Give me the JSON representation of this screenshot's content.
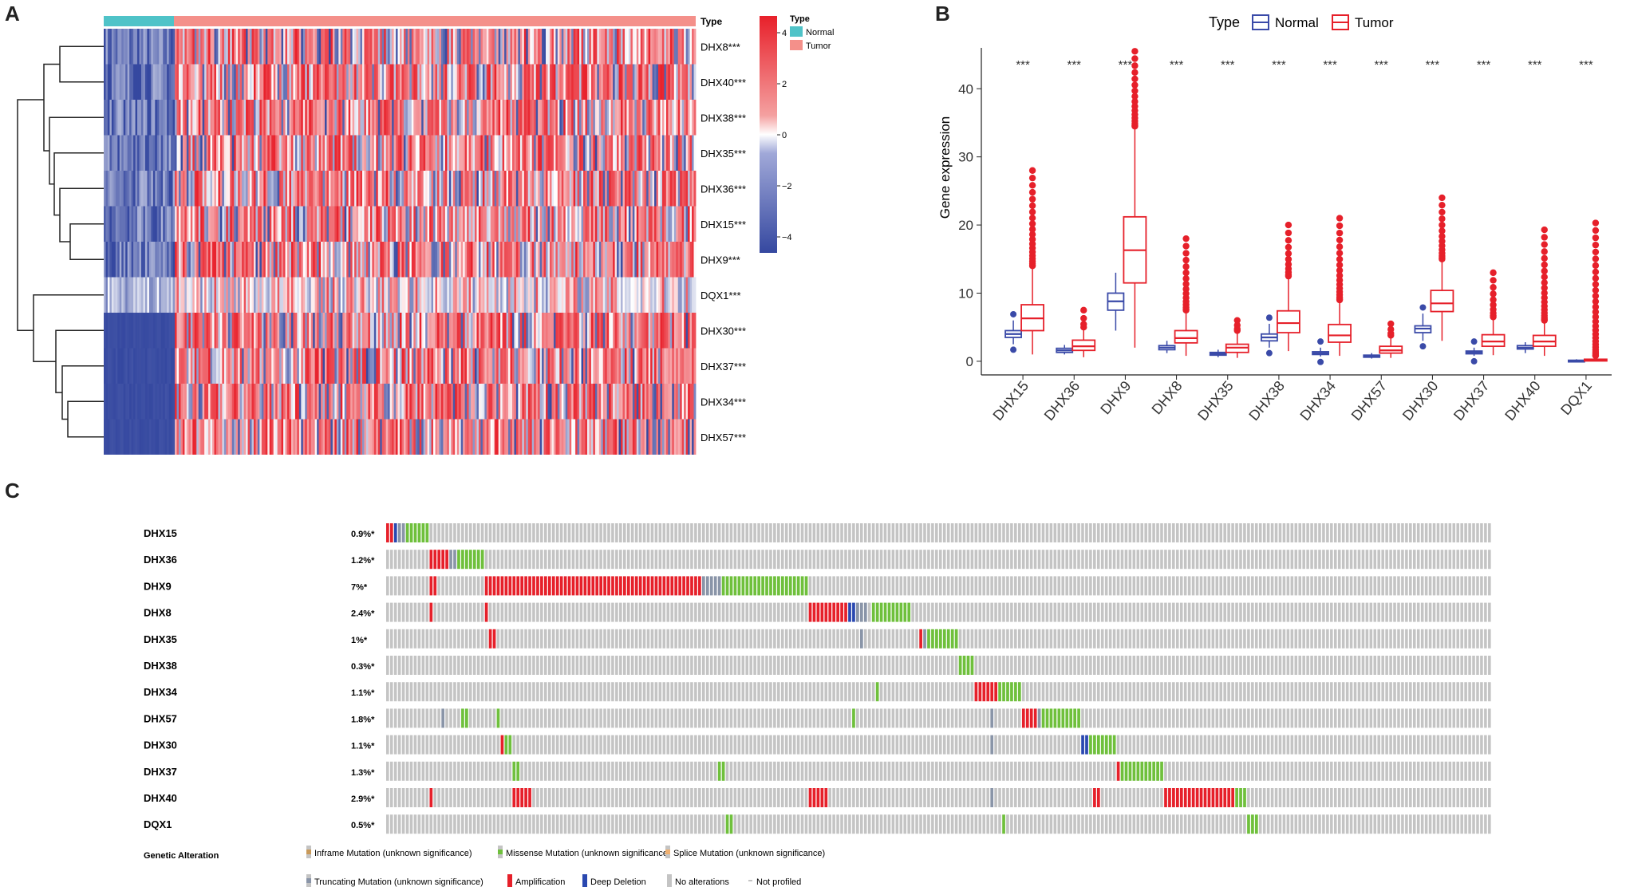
{
  "panel_labels": {
    "a": "A",
    "b": "B",
    "c": "C"
  },
  "heatmap": {
    "type_header": "Type",
    "rows": [
      "DHX8***",
      "DHX40***",
      "DHX38***",
      "DHX35***",
      "DHX36***",
      "DHX15***",
      "DHX9***",
      "DQX1***",
      "DHX30***",
      "DHX37***",
      "DHX34***",
      "DHX57***"
    ],
    "colorbar_ticks": [
      "4",
      "2",
      "0",
      "−2",
      "−4"
    ],
    "legend_title": "Type",
    "legend_items": [
      {
        "label": "Normal",
        "color": "#4fc3c8"
      },
      {
        "label": "Tumor",
        "color": "#f4908a"
      }
    ],
    "colors": {
      "high": "#e8202a",
      "mid": "#ffffff",
      "low": "#3548a0"
    }
  },
  "chart_data": {
    "type": "boxplot",
    "legend_title": "Type",
    "legend": [
      {
        "name": "Normal",
        "color": "#3a4aa8"
      },
      {
        "name": "Tumor",
        "color": "#e6202a"
      }
    ],
    "ylabel": "Gene expression",
    "ylim": [
      -2,
      46
    ],
    "yticks": [
      "0",
      "10",
      "20",
      "30",
      "40"
    ],
    "categories": [
      "DHX15",
      "DHX36",
      "DHX9",
      "DHX8",
      "DHX35",
      "DHX38",
      "DHX34",
      "DHX57",
      "DHX30",
      "DHX37",
      "DHX40",
      "DQX1"
    ],
    "significance": [
      "***",
      "***",
      "***",
      "***",
      "***",
      "***",
      "***",
      "***",
      "***",
      "***",
      "***",
      "***"
    ],
    "series": [
      {
        "name": "Normal",
        "boxes": [
          [
            2.5,
            3.5,
            4.0,
            4.5,
            6.0
          ],
          [
            1.0,
            1.3,
            1.6,
            1.9,
            2.4
          ],
          [
            4.5,
            7.5,
            8.8,
            10.0,
            13.0
          ],
          [
            1.2,
            1.7,
            2.0,
            2.3,
            3.0
          ],
          [
            0.6,
            0.9,
            1.1,
            1.3,
            1.7
          ],
          [
            2.0,
            3.0,
            3.5,
            4.0,
            5.5
          ],
          [
            0.7,
            1.0,
            1.2,
            1.4,
            2.0
          ],
          [
            0.4,
            0.6,
            0.8,
            0.9,
            1.2
          ],
          [
            3.0,
            4.2,
            4.8,
            5.2,
            7.0
          ],
          [
            0.8,
            1.1,
            1.3,
            1.5,
            2.0
          ],
          [
            1.2,
            1.8,
            2.0,
            2.3,
            2.8
          ],
          [
            0.0,
            0.05,
            0.1,
            0.15,
            0.3
          ]
        ]
      },
      {
        "name": "Tumor",
        "boxes": [
          [
            1.0,
            4.5,
            6.3,
            8.3,
            14.0
          ],
          [
            0.6,
            1.6,
            2.2,
            3.1,
            5.0
          ],
          [
            2.0,
            11.5,
            16.3,
            21.2,
            34.5
          ],
          [
            0.8,
            2.7,
            3.4,
            4.5,
            7.5
          ],
          [
            0.5,
            1.3,
            2.0,
            2.5,
            4.5
          ],
          [
            1.5,
            4.2,
            5.6,
            7.4,
            12.5
          ],
          [
            0.8,
            2.8,
            3.8,
            5.4,
            9.0
          ],
          [
            0.5,
            1.2,
            1.6,
            2.2,
            3.8
          ],
          [
            3.0,
            7.3,
            8.5,
            10.4,
            15.0
          ],
          [
            0.9,
            2.2,
            2.9,
            3.9,
            6.5
          ],
          [
            0.8,
            2.2,
            2.9,
            3.8,
            6.0
          ],
          [
            0.0,
            0.05,
            0.15,
            0.3,
            0.8
          ]
        ]
      }
    ],
    "outlier_max": [
      28.0,
      7.5,
      45.5,
      18.0,
      6.0,
      20.0,
      21.0,
      5.5,
      24.0,
      13.0,
      19.3,
      20.3
    ]
  },
  "oncoprint": {
    "genes": [
      {
        "name": "DHX15",
        "pct": "0.9%*"
      },
      {
        "name": "DHX36",
        "pct": "1.2%*"
      },
      {
        "name": "DHX9",
        "pct": "7%*"
      },
      {
        "name": "DHX8",
        "pct": "2.4%*"
      },
      {
        "name": "DHX35",
        "pct": "1%*"
      },
      {
        "name": "DHX38",
        "pct": "0.3%*"
      },
      {
        "name": "DHX34",
        "pct": "1.1%*"
      },
      {
        "name": "DHX57",
        "pct": "1.8%*"
      },
      {
        "name": "DHX30",
        "pct": "1.1%*"
      },
      {
        "name": "DHX37",
        "pct": "1.3%*"
      },
      {
        "name": "DHX40",
        "pct": "2.9%*"
      },
      {
        "name": "DQX1",
        "pct": "0.5%*"
      }
    ],
    "legend_title": "Genetic Alteration",
    "legend_row1": [
      {
        "label": "Inframe Mutation (unknown significance)",
        "color": "#c99a5a"
      },
      {
        "label": "Missense Mutation (unknown significance)",
        "color": "#6fc03c"
      },
      {
        "label": "Splice Mutation (unknown significance)",
        "color": "#f0b070"
      }
    ],
    "legend_row2": [
      {
        "label": "Truncating Mutation (unknown significance)",
        "color": "#8a95a8"
      },
      {
        "label": "Amplification",
        "color": "#e6202a"
      },
      {
        "label": "Deep Deletion",
        "color": "#2a48b0"
      },
      {
        "label": "No alterations",
        "color": "#c4c4c4"
      },
      {
        "label": "Not profiled",
        "color": "#888888"
      }
    ]
  }
}
